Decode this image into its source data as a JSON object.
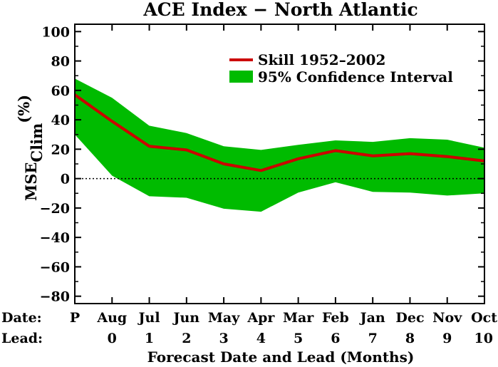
{
  "chart_data": {
    "type": "line",
    "title": "ACE Index − North Atlantic",
    "xlabel": "Forecast Date and Lead (Months)",
    "ylabel_main": "MSE",
    "ylabel_sub": "Clim",
    "ylabel_unit": "(%)",
    "row_labels": {
      "date": "Date:",
      "lead": "Lead:"
    },
    "x": [
      "P",
      "Aug",
      "Jul",
      "Jun",
      "May",
      "Apr",
      "Mar",
      "Feb",
      "Jan",
      "Dec",
      "Nov",
      "Oct"
    ],
    "leads": [
      "",
      "0",
      "1",
      "2",
      "3",
      "4",
      "5",
      "6",
      "7",
      "8",
      "9",
      "10"
    ],
    "ylim": [
      -85,
      105
    ],
    "yticks": [
      "100",
      "80",
      "60",
      "40",
      "20",
      "0",
      "−20",
      "−40",
      "−60",
      "−80"
    ],
    "ytick_values": [
      100,
      80,
      60,
      40,
      20,
      0,
      -20,
      -40,
      -60,
      -80
    ],
    "series": [
      {
        "name": "Skill 1952–2002",
        "color": "#cc0000",
        "values": [
          57,
          39,
          22,
          19.5,
          10,
          5.5,
          13.5,
          19,
          15.5,
          17,
          15,
          12
        ]
      }
    ],
    "band": {
      "name": "95% Confidence Interval",
      "color": "#00bb00",
      "upper": [
        68,
        55,
        36,
        31,
        22,
        19.5,
        23,
        26,
        25,
        27.5,
        26.5,
        21
      ],
      "lower": [
        30,
        2,
        -12,
        -13,
        -20.5,
        -22.5,
        -9.5,
        -2.5,
        -9,
        -9.5,
        -11.5,
        -10
      ]
    },
    "reference_line": {
      "value": 0,
      "style": "dotted"
    },
    "legend_placement": "top-right"
  }
}
